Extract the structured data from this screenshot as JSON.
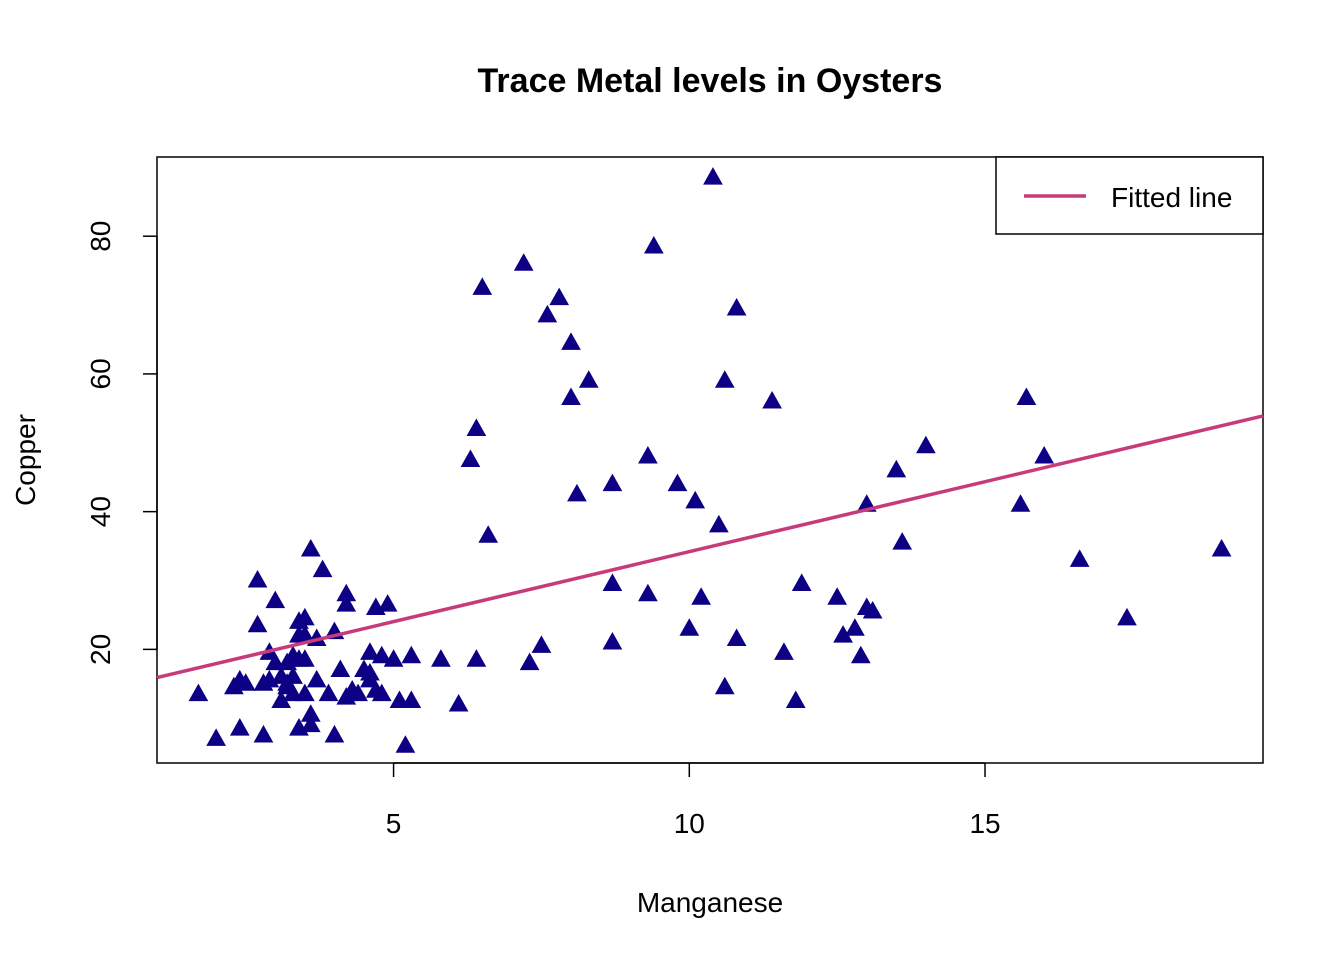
{
  "chart_data": {
    "type": "scatter",
    "title": "Trace Metal levels in Oysters",
    "xlabel": "Manganese",
    "ylabel": "Copper",
    "xlim": [
      1,
      19.7
    ],
    "ylim": [
      3.5,
      91.5
    ],
    "x_ticks": [
      5,
      10,
      15
    ],
    "y_ticks": [
      20,
      40,
      60,
      80
    ],
    "grid": false,
    "legend_position": "top-right",
    "colors": {
      "points": "#0d0084",
      "fitted_line": "#c73a7c"
    },
    "fitted_line": {
      "name": "Fitted line",
      "x": [
        1,
        19.7
      ],
      "y": [
        15.9,
        53.9
      ]
    },
    "series": [
      {
        "marker": "filled-triangle",
        "x": [
          1.7,
          2.0,
          2.3,
          2.4,
          2.4,
          2.5,
          2.7,
          2.7,
          2.8,
          2.8,
          2.9,
          2.9,
          3.0,
          3.0,
          3.1,
          3.1,
          3.2,
          3.2,
          3.2,
          3.3,
          3.3,
          3.3,
          3.4,
          3.4,
          3.4,
          3.4,
          3.5,
          3.5,
          3.5,
          3.5,
          3.6,
          3.6,
          3.6,
          3.7,
          3.7,
          3.8,
          3.9,
          4.0,
          4.0,
          4.1,
          4.2,
          4.2,
          4.2,
          4.3,
          4.3,
          4.4,
          4.5,
          4.6,
          4.6,
          4.6,
          4.7,
          4.7,
          4.8,
          4.8,
          4.9,
          5.0,
          5.1,
          5.2,
          5.3,
          5.3,
          5.8,
          6.1,
          6.3,
          6.4,
          6.4,
          6.5,
          6.6,
          7.2,
          7.3,
          7.5,
          7.6,
          7.8,
          8.0,
          8.0,
          8.1,
          8.3,
          8.7,
          8.7,
          8.7,
          9.3,
          9.3,
          9.4,
          9.8,
          10.0,
          10.1,
          10.2,
          10.4,
          10.5,
          10.6,
          10.6,
          10.8,
          10.8,
          11.4,
          11.6,
          11.8,
          11.9,
          12.5,
          12.6,
          12.8,
          12.9,
          13.0,
          13.0,
          13.1,
          13.5,
          13.6,
          14.0,
          15.6,
          15.7,
          16.0,
          16.6,
          17.4,
          19.0
        ],
        "y": [
          13.5,
          7,
          14.5,
          8.5,
          15.5,
          15,
          30,
          23.5,
          7.5,
          15,
          19.5,
          15.5,
          27,
          18,
          12.5,
          16,
          18,
          15,
          14.5,
          13.5,
          19,
          16,
          22,
          24,
          8.5,
          18.5,
          13.5,
          24.5,
          22,
          18.5,
          34.5,
          9,
          10.5,
          21.5,
          15.5,
          31.5,
          13.5,
          7.5,
          22.5,
          17,
          28,
          13,
          26.5,
          14,
          14,
          13.5,
          17,
          19.5,
          15.5,
          16.5,
          26,
          14,
          19,
          13.5,
          26.5,
          18.5,
          12.5,
          6,
          19,
          12.5,
          18.5,
          12,
          47.5,
          52,
          18.5,
          72.5,
          36.5,
          76,
          18,
          20.5,
          68.5,
          71,
          64.5,
          56.5,
          42.5,
          59,
          21,
          44,
          29.5,
          48,
          28,
          78.5,
          44,
          23,
          41.5,
          27.5,
          88.5,
          38,
          59,
          14.5,
          21.5,
          69.5,
          56,
          19.5,
          12.5,
          29.5,
          27.5,
          22,
          23,
          19,
          26,
          41,
          25.5,
          46,
          35.5,
          49.5,
          41,
          56.5,
          48,
          33,
          24.5,
          34.5
        ]
      }
    ]
  }
}
